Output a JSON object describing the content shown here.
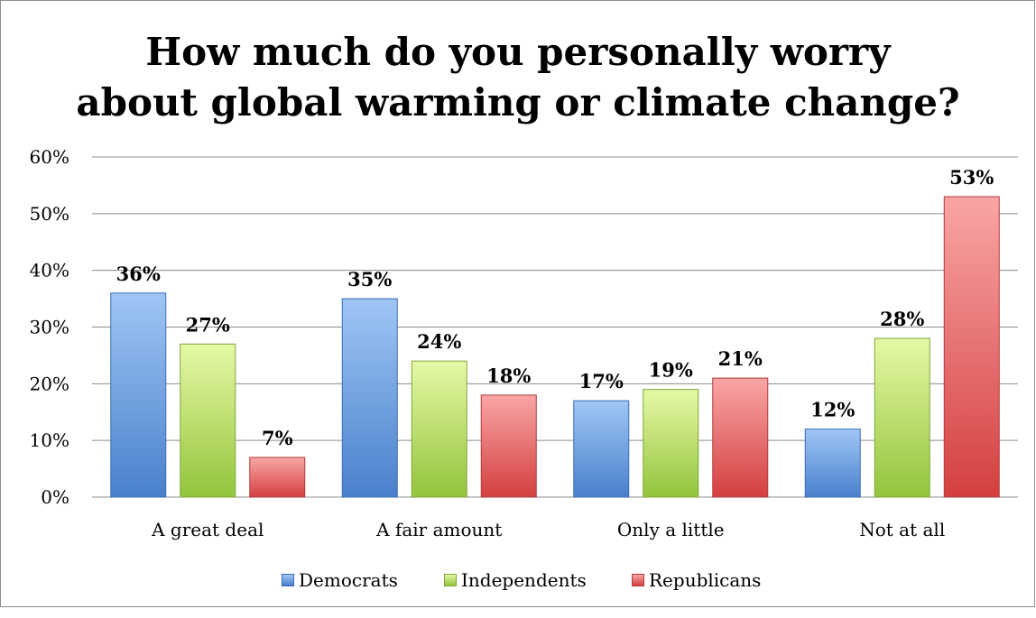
{
  "chart_data": {
    "type": "bar",
    "title_lines": [
      "How much do you personally worry",
      "about global warming or climate change?"
    ],
    "categories": [
      "A great deal",
      "A fair amount",
      "Only a little",
      "Not at all"
    ],
    "series": [
      {
        "name": "Democrats",
        "values": [
          36,
          35,
          17,
          12
        ],
        "color_top": "#9fc6f5",
        "color_bottom": "#4a80cc",
        "stroke": "#3a6db5"
      },
      {
        "name": "Independents",
        "values": [
          27,
          24,
          19,
          28
        ],
        "color_top": "#e6f9a6",
        "color_bottom": "#93c43c",
        "stroke": "#7ea73a"
      },
      {
        "name": "Republicans",
        "values": [
          7,
          18,
          21,
          53
        ],
        "color_top": "#f9a6a6",
        "color_bottom": "#d43f3f",
        "stroke": "#b43a3a"
      }
    ],
    "data_labels": [
      [
        "36%",
        "35%",
        "17%",
        "12%"
      ],
      [
        "27%",
        "24%",
        "19%",
        "28%"
      ],
      [
        "7%",
        "18%",
        "21%",
        "53%"
      ]
    ],
    "y_ticks": [
      "0%",
      "10%",
      "20%",
      "30%",
      "40%",
      "50%",
      "60%"
    ],
    "ylim": [
      0,
      60
    ],
    "grid": true,
    "legend_position": "bottom",
    "grid_color": "#8c8c8c"
  }
}
